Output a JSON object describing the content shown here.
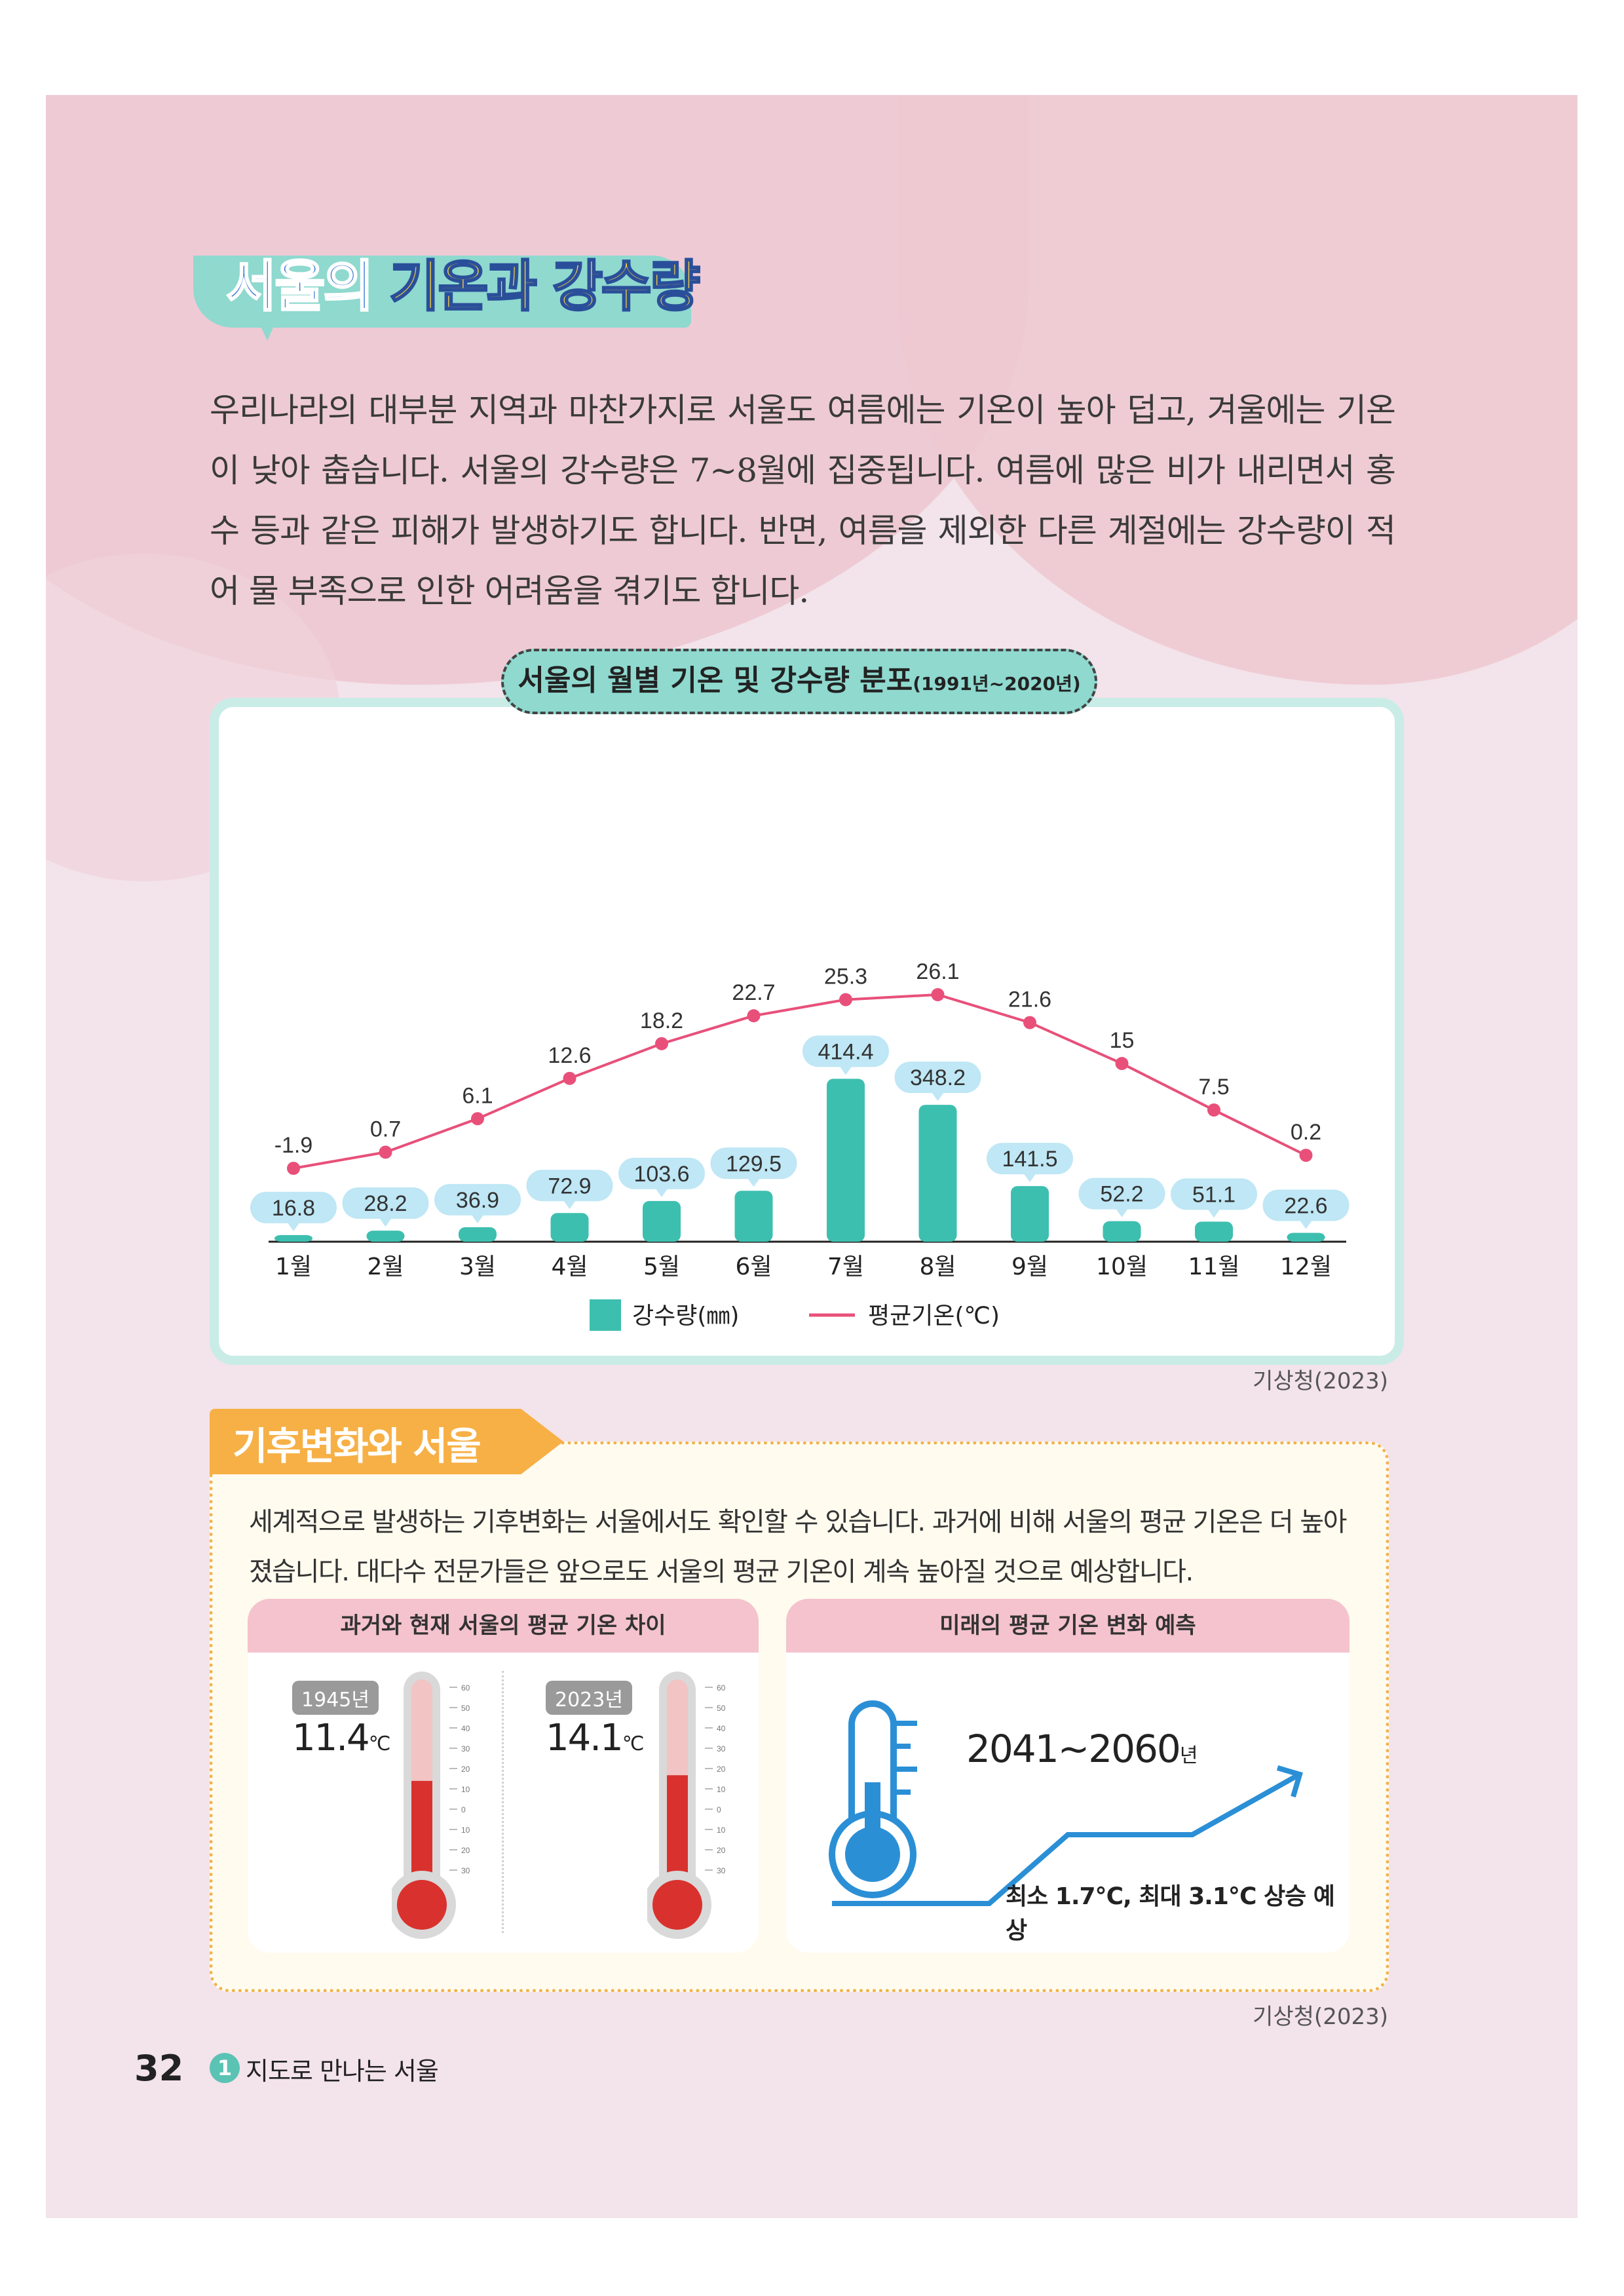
{
  "section_title": {
    "part1": "서울의",
    "part2": "기온과 강수량"
  },
  "intro_text": "우리나라의 대부분 지역과 마찬가지로 서울도 여름에는 기온이 높아 덥고, 겨울에는 기온이 낮아 춥습니다. 서울의 강수량은 7~8월에 집중됩니다. 여름에 많은 비가 내리면서 홍수 등과 같은 피해가 발생하기도 합니다. 반면, 여름을 제외한 다른 계절에는 강수량이 적어 물 부족으로 인한 어려움을 겪기도 합니다.",
  "chart_title": "서울의 월별 기온 및 강수량 분포",
  "chart_subtitle": "(1991년~2020년)",
  "chart_data": {
    "type": "bar",
    "categories": [
      "1월",
      "2월",
      "3월",
      "4월",
      "5월",
      "6월",
      "7월",
      "8월",
      "9월",
      "10월",
      "11월",
      "12월"
    ],
    "series": [
      {
        "name": "강수량(㎜)",
        "type": "bar",
        "values": [
          16.8,
          28.2,
          36.9,
          72.9,
          103.6,
          129.5,
          414.4,
          348.2,
          141.5,
          52.2,
          51.1,
          22.6
        ]
      },
      {
        "name": "평균기온(℃)",
        "type": "line",
        "values": [
          -1.9,
          0.7,
          6.1,
          12.6,
          18.2,
          22.7,
          25.3,
          26.1,
          21.6,
          15,
          7.5,
          0.2
        ]
      }
    ],
    "legend": "bottom-center",
    "grid": false,
    "colors": {
      "bar": "#3dbfaf",
      "line": "#e8507a",
      "label_bg": "#bfe7f5"
    }
  },
  "source1": "기상청(2023)",
  "climate_change": {
    "title": "기후변화와 서울",
    "text": "세계적으로 발생하는 기후변화는 서울에서도 확인할 수 있습니다. 과거에 비해 서울의 평균 기온은 더 높아졌습니다. 대다수 전문가들은 앞으로도 서울의 평균 기온이 계속 높아질 것으로 예상합니다.",
    "past_card": {
      "title": "과거와 현재 서울의 평균 기온 차이",
      "items": [
        {
          "year": "1945년",
          "value": "11.4",
          "unit": "℃",
          "level": 0.24
        },
        {
          "year": "2023년",
          "value": "14.1",
          "unit": "℃",
          "level": 0.27
        }
      ],
      "scale": [
        "60",
        "50",
        "40",
        "30",
        "20",
        "10",
        "0",
        "10",
        "20",
        "30"
      ]
    },
    "future_card": {
      "title": "미래의 평균 기온 변화 예측",
      "years": "2041~2060",
      "years_unit": "년",
      "note": "최소 1.7℃, 최대 3.1℃ 상승 예상"
    }
  },
  "source2": "기상청(2023)",
  "footer": {
    "page_number": "32",
    "chapter_number": "1",
    "chapter_name": "지도로 만나는 서울"
  }
}
